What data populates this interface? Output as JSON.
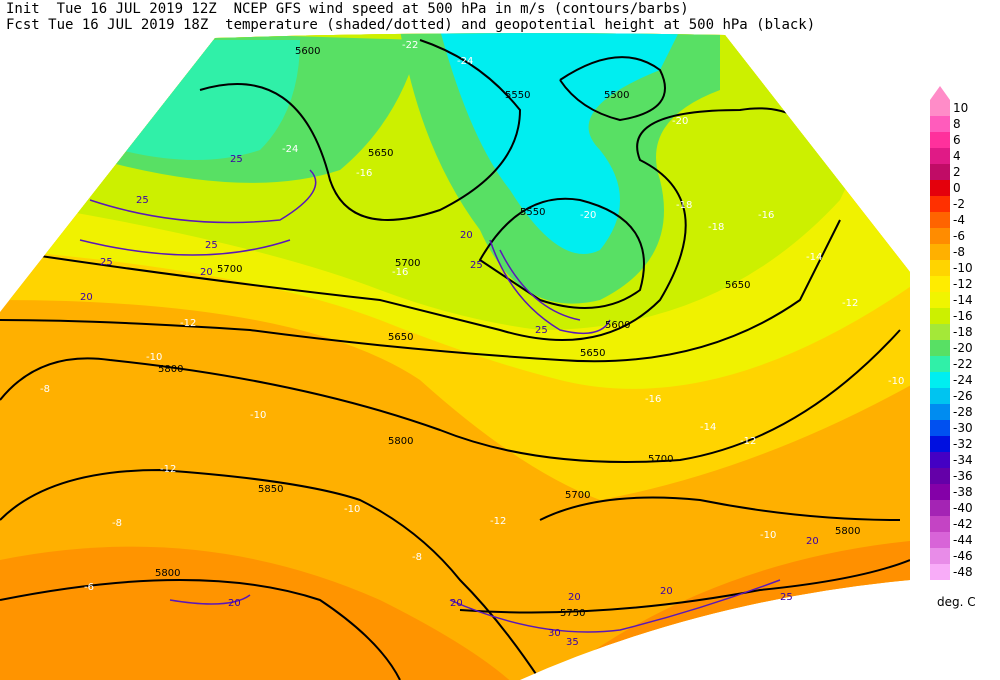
{
  "header": {
    "line1": "Init  Tue 16 JUL 2019 12Z  NCEP GFS wind speed at 500 hPa in m/s (contours/barbs)",
    "line2": "Fcst Tue 16 JUL 2019 18Z  temperature (shaded/dotted) and geopotential height at 500 hPa (black)"
  },
  "colorbar": {
    "labels": [
      10,
      8,
      6,
      4,
      2,
      0,
      -2,
      -4,
      -6,
      -8,
      -10,
      -12,
      -14,
      -16,
      -18,
      -20,
      -22,
      -24,
      -26,
      -28,
      -30,
      -32,
      -34,
      -36,
      -38,
      -40,
      -42,
      -44,
      -46,
      -48
    ],
    "colors": [
      "#ff8cc8",
      "#ff5cbc",
      "#ff309c",
      "#e01a86",
      "#c00c66",
      "#e4000c",
      "#ff3000",
      "#ff6400",
      "#ff8c00",
      "#ffb000",
      "#ffd400",
      "#ffec00",
      "#f0f400",
      "#ccf000",
      "#a4e838",
      "#58e064",
      "#30f0a8",
      "#00eef0",
      "#00c4f0",
      "#008cf0",
      "#0050f0",
      "#0010e0",
      "#4400c4",
      "#6400a8",
      "#8400a8",
      "#a424b4",
      "#c444c4",
      "#d864d8",
      "#e88ce8",
      "#f8acf8"
    ],
    "unit": "deg. C"
  },
  "map": {
    "height_labels": [
      "5600",
      "5550",
      "5500",
      "5650",
      "5550",
      "5700",
      "5700",
      "5650",
      "5650",
      "5650",
      "5800",
      "5800",
      "5850",
      "5700",
      "5700",
      "5800",
      "5800",
      "5750",
      "5600"
    ],
    "temp_labels": [
      "-24",
      "-22",
      "-24",
      "-20",
      "-16",
      "-18",
      "-16",
      "-16",
      "-14",
      "-12",
      "-12",
      "-10",
      "-8",
      "-10",
      "-12",
      "-10",
      "-8",
      "-8",
      "-6",
      "-10",
      "-12",
      "-16",
      "-14",
      "-10",
      "-12",
      "-18",
      "-20"
    ],
    "wind_labels": [
      "25",
      "25",
      "25",
      "20",
      "20",
      "25",
      "20",
      "25",
      "25",
      "20",
      "20",
      "20",
      "30",
      "35",
      "25",
      "20",
      "20"
    ]
  }
}
